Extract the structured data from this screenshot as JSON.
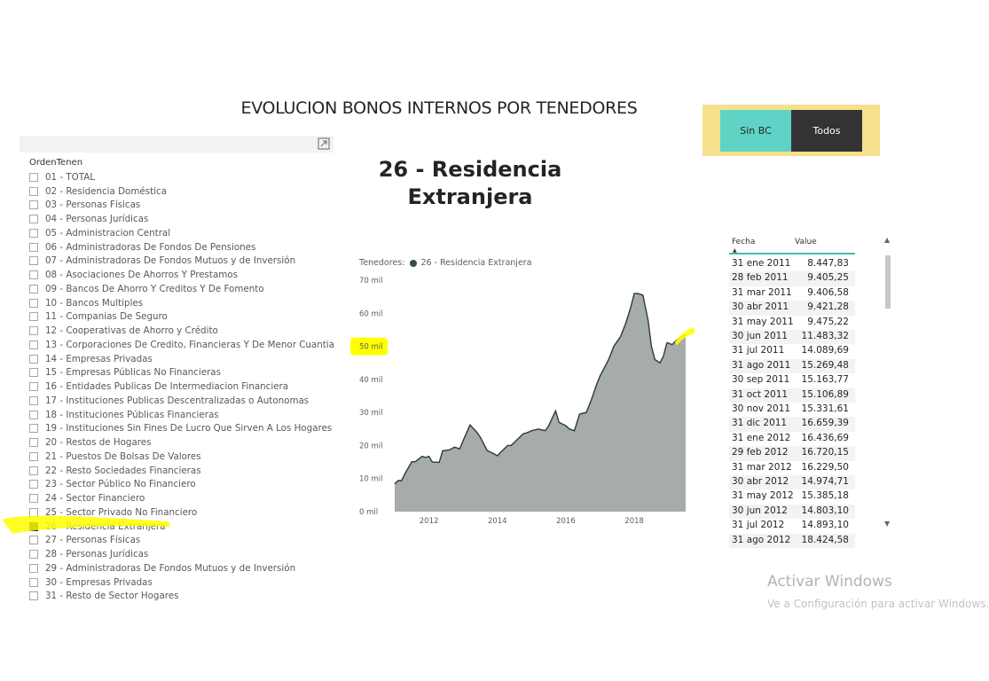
{
  "report": {
    "title": "EVOLUCION BONOS INTERNOS POR TENEDORES"
  },
  "slicer": {
    "title": "OrdenTenen",
    "expand_icon": "focus-mode-icon",
    "items": [
      {
        "label": "01 - TOTAL",
        "checked": false
      },
      {
        "label": "02 - Residencia Doméstica",
        "checked": false
      },
      {
        "label": "03 - Personas Físicas",
        "checked": false
      },
      {
        "label": "04 - Personas Jurídicas",
        "checked": false
      },
      {
        "label": "05 - Administracion Central",
        "checked": false
      },
      {
        "label": "06 - Administradoras De Fondos De Pensiones",
        "checked": false
      },
      {
        "label": "07 - Administradoras De Fondos Mutuos y de Inversión",
        "checked": false
      },
      {
        "label": "08 - Asociaciones De Ahorros Y Prestamos",
        "checked": false
      },
      {
        "label": "09 - Bancos De Ahorro Y Creditos Y De Fomento",
        "checked": false
      },
      {
        "label": "10 - Bancos Multiples",
        "checked": false
      },
      {
        "label": "11 - Companias De Seguro",
        "checked": false
      },
      {
        "label": "12 - Cooperativas de Ahorro y Crédito",
        "checked": false
      },
      {
        "label": "13 - Corporaciones De Credito, Financieras Y De Menor Cuantia",
        "checked": false
      },
      {
        "label": "14 - Empresas Privadas",
        "checked": false
      },
      {
        "label": "15 - Empresas Públicas No Financieras",
        "checked": false
      },
      {
        "label": "16 - Entidades Publicas De Intermediacion Financiera",
        "checked": false
      },
      {
        "label": "17 - Instituciones Publicas Descentralizadas o Autonomas",
        "checked": false
      },
      {
        "label": "18 - Instituciones Públicas Financieras",
        "checked": false
      },
      {
        "label": "19 - Instituciones Sin Fines De Lucro Que Sirven A Los Hogares",
        "checked": false
      },
      {
        "label": "20 - Restos de Hogares",
        "checked": false
      },
      {
        "label": "21 - Puestos De Bolsas De Valores",
        "checked": false
      },
      {
        "label": "22 - Resto Sociedades Financieras",
        "checked": false
      },
      {
        "label": "23 - Sector Público No Financiero",
        "checked": false
      },
      {
        "label": "24 - Sector Financiero",
        "checked": false
      },
      {
        "label": "25 - Sector Privado No Financiero",
        "checked": false
      },
      {
        "label": "26 - Residencia Extranjera",
        "checked": true
      },
      {
        "label": "27 - Personas Físicas",
        "checked": false
      },
      {
        "label": "28 - Personas Jurídicas",
        "checked": false
      },
      {
        "label": "29 - Administradoras De Fondos Mutuos y de Inversión",
        "checked": false
      },
      {
        "label": "30 - Empresas Privadas",
        "checked": false
      },
      {
        "label": "31 - Resto de Sector Hogares",
        "checked": false
      }
    ]
  },
  "buttons": {
    "sin_bc": "Sin BC",
    "todos": "Todos"
  },
  "card": {
    "title_line1": "26 - Residencia",
    "title_line2": "Extranjera"
  },
  "colors": {
    "highlight": "#ffff00",
    "area_fill": "#a6abab",
    "area_line": "#2f3838",
    "button_active": "#5fd4c6",
    "button_dark": "#333333",
    "button_panel": "#f6e08c",
    "table_header_rule": "#3bbfb0"
  },
  "chart_data": {
    "type": "area",
    "legend_title": "Tenedores:",
    "series": [
      {
        "name": "26 - Residencia Extranjera",
        "x": [
          2011.0,
          2011.1,
          2011.2,
          2011.3,
          2011.5,
          2011.6,
          2011.8,
          2011.9,
          2012.0,
          2012.1,
          2012.3,
          2012.4,
          2012.6,
          2012.75,
          2012.9,
          2013.0,
          2013.2,
          2013.4,
          2013.5,
          2013.7,
          2013.8,
          2013.9,
          2014.0,
          2014.1,
          2014.3,
          2014.4,
          2014.6,
          2014.75,
          2014.9,
          2015.0,
          2015.2,
          2015.4,
          2015.5,
          2015.7,
          2015.8,
          2015.9,
          2016.0,
          2016.1,
          2016.25,
          2016.4,
          2016.6,
          2016.75,
          2016.9,
          2017.0,
          2017.25,
          2017.4,
          2017.6,
          2017.75,
          2017.9,
          2018.0,
          2018.1,
          2018.25,
          2018.4,
          2018.5,
          2018.6,
          2018.75,
          2018.85,
          2018.95,
          2019.0,
          2019.1,
          2019.25,
          2019.4,
          2019.5
        ],
        "y": [
          8.4,
          9.4,
          9.4,
          11.5,
          15.1,
          15.1,
          16.7,
          16.4,
          16.7,
          15.0,
          14.9,
          18.4,
          18.7,
          19.5,
          19.0,
          21.5,
          26.2,
          24.0,
          22.5,
          18.5,
          18.0,
          17.5,
          16.9,
          18.0,
          20.0,
          20.0,
          22.0,
          23.5,
          24.0,
          24.5,
          25.0,
          24.5,
          26.0,
          30.5,
          27.0,
          26.5,
          26.0,
          25.0,
          24.5,
          29.5,
          30.0,
          34.0,
          38.5,
          41.0,
          46.0,
          50.0,
          53.0,
          57.0,
          62.0,
          66.0,
          66.0,
          65.5,
          58.0,
          50.0,
          46.0,
          45.0,
          47.0,
          51.0,
          51.0,
          50.5,
          52.0,
          53.0,
          53.5
        ]
      }
    ],
    "xlim": [
      2011.0,
      2019.5
    ],
    "ylim": [
      0,
      70
    ],
    "x_ticks": [
      2012,
      2014,
      2016,
      2018
    ],
    "x_tick_labels": [
      "2012",
      "2014",
      "2016",
      "2018"
    ],
    "y_ticks": [
      0,
      10,
      20,
      30,
      40,
      50,
      60,
      70
    ],
    "y_tick_labels": [
      "0 mil",
      "10 mil",
      "20 mil",
      "30 mil",
      "40 mil",
      "50 mil",
      "60 mil",
      "70 mil"
    ],
    "highlighted_y_tick": "50 mil",
    "grid": false,
    "legend_position": "top-left"
  },
  "table": {
    "headers": {
      "date": "Fecha",
      "value": "Value"
    },
    "sort_icon": "sort-ascending-icon",
    "rows": [
      {
        "date": "31 ene 2011",
        "value": "8.447,83"
      },
      {
        "date": "28 feb 2011",
        "value": "9.405,25"
      },
      {
        "date": "31 mar 2011",
        "value": "9.406,58"
      },
      {
        "date": "30 abr 2011",
        "value": "9.421,28"
      },
      {
        "date": "31 may 2011",
        "value": "9.475,22"
      },
      {
        "date": "30 jun 2011",
        "value": "11.483,32"
      },
      {
        "date": "31 jul 2011",
        "value": "14.089,69"
      },
      {
        "date": "31 ago 2011",
        "value": "15.269,48"
      },
      {
        "date": "30 sep 2011",
        "value": "15.163,77"
      },
      {
        "date": "31 oct 2011",
        "value": "15.106,89"
      },
      {
        "date": "30 nov 2011",
        "value": "15.331,61"
      },
      {
        "date": "31 dic 2011",
        "value": "16.659,39"
      },
      {
        "date": "31 ene 2012",
        "value": "16.436,69"
      },
      {
        "date": "29 feb 2012",
        "value": "16.720,15"
      },
      {
        "date": "31 mar 2012",
        "value": "16.229,50"
      },
      {
        "date": "30 abr 2012",
        "value": "14.974,71"
      },
      {
        "date": "31 may 2012",
        "value": "15.385,18"
      },
      {
        "date": "30 jun 2012",
        "value": "14.803,10"
      },
      {
        "date": "31 jul 2012",
        "value": "14.893,10"
      },
      {
        "date": "31 ago 2012",
        "value": "18.424,58"
      }
    ]
  },
  "watermark": {
    "title": "Activar Windows",
    "subtitle": "Ve a Configuración para activar Windows."
  }
}
